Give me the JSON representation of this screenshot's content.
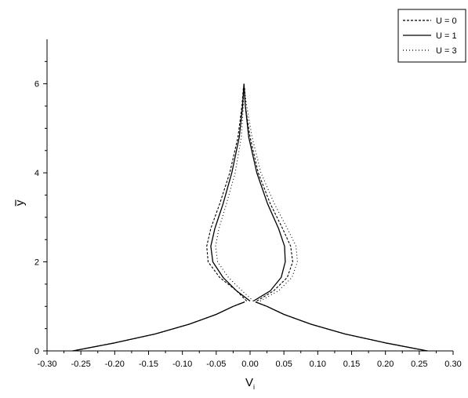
{
  "chart_data": {
    "type": "line",
    "xlabel": "V",
    "xlabel_sub": "i",
    "ylabel": "y",
    "ylabel_bar": true,
    "xlim": [
      -0.3,
      0.3
    ],
    "ylim": [
      0,
      7
    ],
    "xticks": [
      -0.3,
      -0.25,
      -0.2,
      -0.15,
      -0.1,
      -0.05,
      0.0,
      0.05,
      0.1,
      0.15,
      0.2,
      0.25,
      0.3
    ],
    "xtick_labels": [
      "-0.30",
      "-0.25",
      "-0.20",
      "-0.15",
      "-0.10",
      "-0.05",
      "0.00",
      "0.05",
      "0.10",
      "0.15",
      "0.20",
      "0.25",
      "0.30"
    ],
    "yticks": [
      0,
      2,
      4,
      6
    ],
    "ytick_labels": [
      "0",
      "2",
      "4",
      "6"
    ],
    "grid": false,
    "legend_position": "top-right",
    "series": [
      {
        "name": "U = 0",
        "style": "dashed",
        "color": "#000000",
        "curves": [
          {
            "x": [
              -0.262,
              -0.2,
              -0.14,
              -0.09,
              -0.05,
              -0.025,
              -0.008
            ],
            "y": [
              0.0,
              0.18,
              0.38,
              0.6,
              0.82,
              1.0,
              1.1
            ]
          },
          {
            "x": [
              0.262,
              0.2,
              0.14,
              0.09,
              0.05,
              0.025,
              0.008
            ],
            "y": [
              0.0,
              0.18,
              0.38,
              0.6,
              0.82,
              1.0,
              1.1
            ]
          },
          {
            "x": [
              -0.005,
              -0.02,
              -0.045,
              -0.062,
              -0.064,
              -0.058,
              -0.045,
              -0.03,
              -0.018,
              -0.012,
              -0.01
            ],
            "y": [
              1.12,
              1.35,
              1.65,
              2.0,
              2.35,
              2.75,
              3.3,
              4.0,
              4.8,
              5.5,
              5.9
            ]
          },
          {
            "x": [
              0.01,
              0.035,
              0.055,
              0.063,
              0.06,
              0.048,
              0.03,
              0.012,
              0.0,
              -0.007,
              -0.008
            ],
            "y": [
              1.12,
              1.35,
              1.65,
              2.0,
              2.35,
              2.75,
              3.3,
              4.0,
              4.8,
              5.5,
              5.9
            ]
          }
        ]
      },
      {
        "name": "U = 1",
        "style": "solid",
        "color": "#000000",
        "curves": [
          {
            "x": [
              -0.262,
              -0.2,
              -0.14,
              -0.09,
              -0.05,
              -0.025,
              -0.008
            ],
            "y": [
              0.0,
              0.18,
              0.38,
              0.6,
              0.82,
              1.0,
              1.1
            ]
          },
          {
            "x": [
              0.262,
              0.2,
              0.14,
              0.09,
              0.05,
              0.025,
              0.008
            ],
            "y": [
              0.0,
              0.18,
              0.38,
              0.6,
              0.82,
              1.0,
              1.1
            ]
          },
          {
            "x": [
              0.0,
              -0.02,
              -0.04,
              -0.055,
              -0.058,
              -0.052,
              -0.04,
              -0.027,
              -0.016,
              -0.011,
              -0.009
            ],
            "y": [
              1.12,
              1.35,
              1.65,
              2.0,
              2.35,
              2.75,
              3.3,
              4.0,
              4.8,
              5.5,
              6.0
            ]
          },
          {
            "x": [
              0.005,
              0.03,
              0.046,
              0.052,
              0.051,
              0.042,
              0.026,
              0.01,
              -0.002,
              -0.007,
              -0.009
            ],
            "y": [
              1.12,
              1.35,
              1.65,
              2.0,
              2.35,
              2.75,
              3.3,
              4.0,
              4.8,
              5.5,
              6.0
            ]
          }
        ]
      },
      {
        "name": "U = 3",
        "style": "dotted",
        "color": "#000000",
        "curves": [
          {
            "x": [
              -0.262,
              -0.2,
              -0.14,
              -0.09,
              -0.05,
              -0.025,
              -0.008
            ],
            "y": [
              0.0,
              0.18,
              0.38,
              0.6,
              0.82,
              1.0,
              1.1
            ]
          },
          {
            "x": [
              0.262,
              0.2,
              0.14,
              0.09,
              0.05,
              0.025,
              0.008
            ],
            "y": [
              0.0,
              0.18,
              0.38,
              0.6,
              0.82,
              1.0,
              1.1
            ]
          },
          {
            "x": [
              0.005,
              -0.012,
              -0.032,
              -0.048,
              -0.051,
              -0.046,
              -0.035,
              -0.022,
              -0.013,
              -0.01,
              -0.009
            ],
            "y": [
              1.12,
              1.35,
              1.65,
              2.0,
              2.35,
              2.75,
              3.3,
              4.0,
              4.8,
              5.5,
              5.95
            ]
          },
          {
            "x": [
              0.015,
              0.042,
              0.062,
              0.07,
              0.068,
              0.055,
              0.036,
              0.016,
              0.003,
              -0.005,
              -0.009
            ],
            "y": [
              1.12,
              1.35,
              1.65,
              2.0,
              2.35,
              2.75,
              3.3,
              4.0,
              4.8,
              5.5,
              5.95
            ]
          }
        ]
      }
    ]
  }
}
